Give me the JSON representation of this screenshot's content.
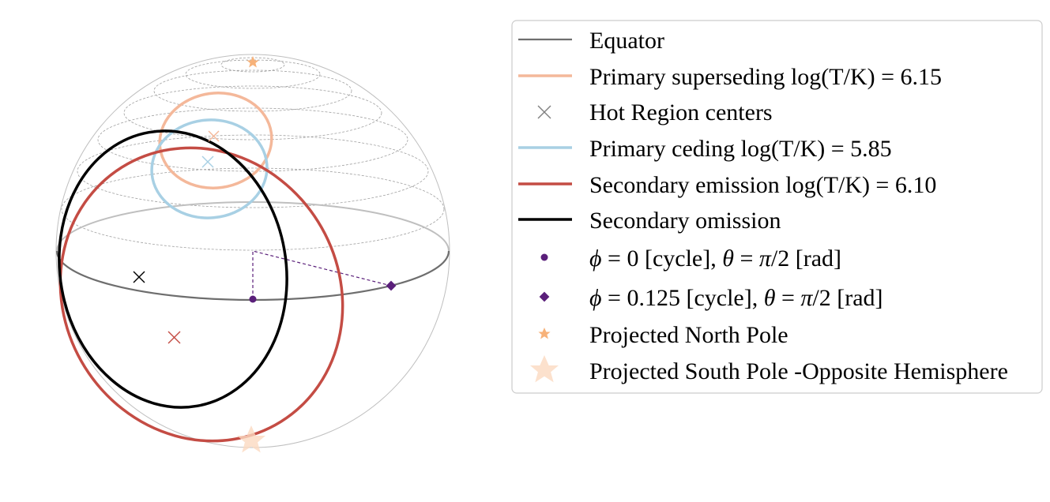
{
  "legend": {
    "entries": [
      {
        "key": "equator",
        "label": "Equator",
        "marker": "line",
        "color": "#6e6e6e"
      },
      {
        "key": "primary_superseding",
        "label": "Primary superseding log(T/K) = 6.15",
        "marker": "line",
        "color": "#f4b89a"
      },
      {
        "key": "hot_region_centers",
        "label": "Hot Region centers",
        "marker": "x",
        "color": "#808080"
      },
      {
        "key": "primary_ceding",
        "label": "Primary ceding log(T/K) = 5.85",
        "marker": "line",
        "color": "#a8d0e4"
      },
      {
        "key": "secondary_emission",
        "label": "Secondary emission log(T/K) = 6.10",
        "marker": "line",
        "color": "#c44c44"
      },
      {
        "key": "secondary_omission",
        "label": "Secondary omission",
        "marker": "line",
        "color": "#000000"
      },
      {
        "key": "phi0",
        "label_parts": [
          "ϕ",
          " = 0 [cycle], ",
          "θ",
          " = ",
          "π",
          "/2 [rad]"
        ],
        "marker": "dot",
        "color": "#5a1f7a"
      },
      {
        "key": "phi0125",
        "label_parts": [
          "ϕ",
          " = 0.125 [cycle], ",
          "θ",
          " = ",
          "π",
          "/2 [rad]"
        ],
        "marker": "diamond",
        "color": "#5a1f7a"
      },
      {
        "key": "north_pole",
        "label": "Projected North Pole",
        "marker": "star",
        "color": "#f7b27a"
      },
      {
        "key": "south_pole",
        "label": "Projected South Pole  -Opposite Hemisphere",
        "marker": "big-star",
        "color": "#fbd9c0"
      }
    ]
  },
  "colors": {
    "sphere_outline": "#bfbfbf",
    "latitude_lines": "#a0a0a0",
    "equator_front": "#6e6e6e",
    "equator_back": "#bfbfbf",
    "primary_superseding": "#f4b89a",
    "primary_ceding": "#a8d0e4",
    "secondary_emission": "#c44c44",
    "secondary_omission": "#000000",
    "phase_marker": "#5a1f7a",
    "north_pole": "#f7b27a",
    "south_pole": "#fbd9c0",
    "hot_center_secondary_omission": "#000000",
    "hot_center_secondary_emission": "#c44c44",
    "hot_center_primary_superseding": "#f4b89a",
    "hot_center_primary_ceding": "#a8d0e4"
  }
}
